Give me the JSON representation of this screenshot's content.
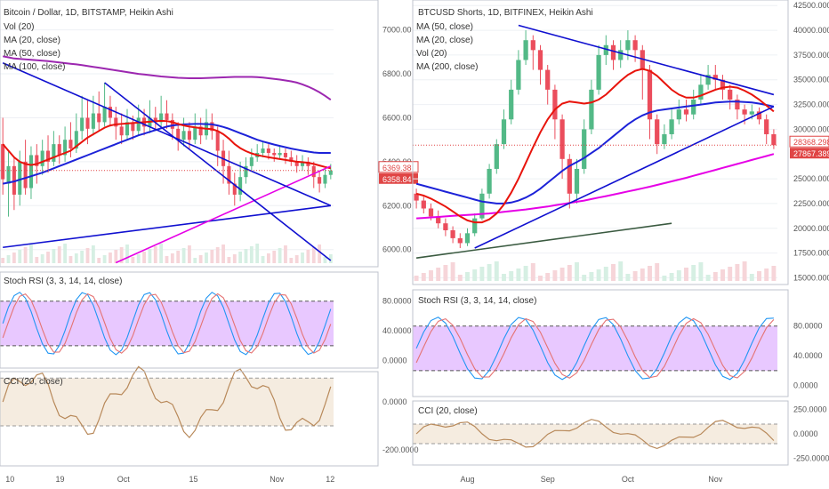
{
  "colors": {
    "up": "#53b987",
    "down": "#eb4d5c",
    "ma_red": "#e8140c",
    "ma_blue": "#1c22d8",
    "ma_purple": "#9c27b0",
    "ma_magenta": "#e600e6",
    "trend_blue": "#1010d0",
    "trend_dark": "#3a5a40",
    "rsi_band": "#e8c8ff",
    "cci_band": "#f5ece0",
    "cci_line": "#b8895a",
    "price_tag": "#e04545"
  },
  "left": {
    "title": "Bitcoin / Dollar, 1D, BITSTAMP, Heikin Ashi",
    "legend": [
      "Vol (20)",
      "MA (20, close)",
      "MA (50, close)",
      "MA (100, close)"
    ],
    "price_ticks": [
      "7000.00",
      "6800.00",
      "6600.00",
      "6400.00",
      "6200.00",
      "6000.00"
    ],
    "price_range": [
      5930,
      7120
    ],
    "price_tag_1": "6369.38",
    "price_tag_2": "6358.84",
    "rsi_title": "Stoch RSI (3, 3, 14, 14, close)",
    "rsi_ticks": [
      "80.0000",
      "40.0000",
      "0.0000"
    ],
    "cci_title": "CCI (20, close)",
    "cci_ticks": [
      "0.0000",
      "-200.0000"
    ],
    "x_ticks": [
      "10",
      "19",
      "Oct",
      "15",
      "Nov",
      "12"
    ]
  },
  "right": {
    "title": "BTCUSD Shorts, 1D, BITFINEX, Heikin Ashi",
    "legend": [
      "MA (50, close)",
      "MA (20, close)",
      "Vol (20)",
      "MA (200, close)"
    ],
    "price_ticks": [
      "42500.0000",
      "40000.0000",
      "37500.0000",
      "35000.0000",
      "32500.0000",
      "30000.0000",
      "25000.0000",
      "22500.0000",
      "20000.0000",
      "17500.0000",
      "15000.0000"
    ],
    "price_range": [
      14500,
      42700
    ],
    "price_tag_1": "28368.2986",
    "price_tag_2": "27867.3898",
    "rsi_title": "Stoch RSI (3, 3, 14, 14, close)",
    "rsi_ticks": [
      "80.0000",
      "40.0000",
      "0.0000"
    ],
    "cci_title": "CCI (20, close)",
    "cci_ticks": [
      "250.0000",
      "0.0000",
      "-250.0000"
    ],
    "x_ticks": [
      "Aug",
      "Sep",
      "Oct",
      "Nov"
    ]
  },
  "chart_data": [
    {
      "type": "candlestick",
      "title": "Bitcoin / Dollar, 1D, BITSTAMP, Heikin Ashi",
      "ylim": [
        5930,
        7120
      ],
      "x_ticks": [
        "10",
        "19",
        "Oct",
        "15",
        "Nov",
        "12"
      ],
      "candles": [
        [
          6480,
          6320,
          6600,
          6250
        ],
        [
          6300,
          6380,
          6450,
          6150
        ],
        [
          6380,
          6250,
          6420,
          6180
        ],
        [
          6250,
          6400,
          6450,
          6200
        ],
        [
          6400,
          6280,
          6500,
          6250
        ],
        [
          6280,
          6430,
          6470,
          6230
        ],
        [
          6430,
          6380,
          6480,
          6300
        ],
        [
          6380,
          6450,
          6500,
          6340
        ],
        [
          6450,
          6400,
          6520,
          6350
        ],
        [
          6400,
          6480,
          6540,
          6380
        ],
        [
          6480,
          6430,
          6520,
          6390
        ],
        [
          6430,
          6500,
          6560,
          6400
        ],
        [
          6500,
          6460,
          6580,
          6420
        ],
        [
          6460,
          6540,
          6620,
          6440
        ],
        [
          6540,
          6600,
          6700,
          6500
        ],
        [
          6600,
          6550,
          6680,
          6480
        ],
        [
          6550,
          6620,
          6700,
          6520
        ],
        [
          6620,
          6580,
          6720,
          6540
        ],
        [
          6580,
          6650,
          6760,
          6560
        ],
        [
          6650,
          6600,
          6700,
          6560
        ],
        [
          6600,
          6560,
          6650,
          6500
        ],
        [
          6560,
          6520,
          6620,
          6480
        ],
        [
          6520,
          6580,
          6640,
          6500
        ],
        [
          6580,
          6540,
          6610,
          6500
        ],
        [
          6540,
          6600,
          6660,
          6520
        ],
        [
          6600,
          6560,
          6640,
          6520
        ],
        [
          6560,
          6600,
          6680,
          6530
        ],
        [
          6600,
          6580,
          6650,
          6540
        ],
        [
          6580,
          6620,
          6700,
          6550
        ],
        [
          6620,
          6590,
          6680,
          6550
        ],
        [
          6590,
          6550,
          6620,
          6500
        ],
        [
          6550,
          6500,
          6580,
          6450
        ],
        [
          6500,
          6540,
          6600,
          6470
        ],
        [
          6540,
          6500,
          6580,
          6460
        ],
        [
          6500,
          6560,
          6620,
          6480
        ],
        [
          6560,
          6520,
          6600,
          6480
        ],
        [
          6520,
          6580,
          6640,
          6500
        ],
        [
          6580,
          6540,
          6620,
          6500
        ],
        [
          6540,
          6450,
          6560,
          6380
        ],
        [
          6450,
          6380,
          6500,
          6300
        ],
        [
          6380,
          6300,
          6450,
          6250
        ],
        [
          6300,
          6250,
          6350,
          6200
        ],
        [
          6250,
          6330,
          6400,
          6220
        ],
        [
          6330,
          6380,
          6420,
          6300
        ],
        [
          6380,
          6420,
          6460,
          6360
        ],
        [
          6420,
          6440,
          6480,
          6400
        ],
        [
          6440,
          6460,
          6490,
          6420
        ],
        [
          6460,
          6440,
          6480,
          6410
        ],
        [
          6440,
          6430,
          6460,
          6400
        ],
        [
          6430,
          6440,
          6470,
          6410
        ],
        [
          6440,
          6420,
          6460,
          6390
        ],
        [
          6420,
          6400,
          6450,
          6380
        ],
        [
          6400,
          6380,
          6430,
          6350
        ],
        [
          6380,
          6400,
          6430,
          6360
        ],
        [
          6400,
          6380,
          6420,
          6340
        ],
        [
          6380,
          6330,
          6400,
          6280
        ],
        [
          6330,
          6300,
          6360,
          6260
        ],
        [
          6300,
          6340,
          6370,
          6280
        ],
        [
          6340,
          6360,
          6390,
          6320
        ]
      ],
      "ma20": [
        6480,
        6450,
        6420,
        6400,
        6390,
        6385,
        6390,
        6400,
        6410,
        6420,
        6430,
        6440,
        6450,
        6470,
        6490,
        6510,
        6525,
        6540,
        6555,
        6565,
        6570,
        6572,
        6574,
        6576,
        6578,
        6580,
        6582,
        6584,
        6586,
        6585,
        6580,
        6572,
        6565,
        6560,
        6556,
        6553,
        6550,
        6548,
        6540,
        6525,
        6505,
        6480,
        6462,
        6448,
        6438,
        6430,
        6425,
        6420,
        6416,
        6412,
        6408,
        6404,
        6400,
        6398,
        6395,
        6390,
        6383,
        6376,
        6370
      ],
      "ma50": [
        6300,
        6305,
        6310,
        6318,
        6326,
        6334,
        6342,
        6350,
        6360,
        6370,
        6380,
        6390,
        6400,
        6410,
        6420,
        6430,
        6440,
        6450,
        6460,
        6470,
        6480,
        6490,
        6500,
        6510,
        6520,
        6528,
        6536,
        6544,
        6552,
        6560,
        6565,
        6568,
        6570,
        6571,
        6572,
        6572,
        6571,
        6570,
        6565,
        6558,
        6550,
        6540,
        6530,
        6520,
        6510,
        6500,
        6492,
        6485,
        6478,
        6472,
        6466,
        6460,
        6455,
        6450,
        6446,
        6442,
        6440,
        6440,
        6440
      ],
      "ma100": [
        6880,
        6875,
        6870,
        6868,
        6866,
        6864,
        6862,
        6860,
        6858,
        6855,
        6852,
        6849,
        6846,
        6843,
        6840,
        6836,
        6832,
        6828,
        6824,
        6820,
        6816,
        6812,
        6808,
        6804,
        6800,
        6797,
        6794,
        6791,
        6788,
        6786,
        6784,
        6782,
        6781,
        6780,
        6780,
        6780,
        6781,
        6782,
        6783,
        6784,
        6785,
        6786,
        6786,
        6786,
        6786,
        6785,
        6783,
        6780,
        6777,
        6774,
        6770,
        6766,
        6760,
        6752,
        6742,
        6730,
        6716,
        6700,
        6682
      ]
    },
    {
      "type": "candlestick",
      "title": "BTCUSD Shorts, 1D, BITFINEX, Heikin Ashi",
      "ylim": [
        14500,
        42700
      ],
      "x_ticks": [
        "Aug",
        "Sep",
        "Oct",
        "Nov"
      ],
      "candles": [
        [
          23500,
          22800,
          24000,
          22000
        ],
        [
          22800,
          22000,
          23200,
          21500
        ],
        [
          22000,
          21200,
          22500,
          20800
        ],
        [
          21200,
          20500,
          21800,
          20000
        ],
        [
          20500,
          19800,
          21000,
          19200
        ],
        [
          19800,
          19000,
          20200,
          18500
        ],
        [
          19000,
          18500,
          19500,
          18000
        ],
        [
          18500,
          19500,
          20000,
          18200
        ],
        [
          19500,
          21000,
          21500,
          19200
        ],
        [
          21000,
          23500,
          24000,
          20800
        ],
        [
          23500,
          26000,
          26500,
          23000
        ],
        [
          26000,
          28500,
          29000,
          25500
        ],
        [
          28500,
          31000,
          32000,
          28000
        ],
        [
          31000,
          34000,
          35000,
          30500
        ],
        [
          34000,
          37000,
          38000,
          33500
        ],
        [
          37000,
          39000,
          40000,
          36500
        ],
        [
          39000,
          38000,
          39500,
          36000
        ],
        [
          38000,
          36000,
          38500,
          34500
        ],
        [
          36000,
          34000,
          36500,
          32500
        ],
        [
          34000,
          31000,
          34500,
          29000
        ],
        [
          31000,
          27000,
          31500,
          25000
        ],
        [
          27000,
          23500,
          27500,
          22000
        ],
        [
          23500,
          26000,
          27000,
          22500
        ],
        [
          26000,
          30000,
          31000,
          25500
        ],
        [
          30000,
          34000,
          35000,
          29500
        ],
        [
          34000,
          37500,
          38500,
          33500
        ],
        [
          37500,
          38500,
          39500,
          36500
        ],
        [
          38500,
          37000,
          39000,
          36000
        ],
        [
          37000,
          38000,
          39000,
          36200
        ],
        [
          38000,
          39000,
          40000,
          37000
        ],
        [
          39000,
          38000,
          39500,
          36800
        ],
        [
          38000,
          36000,
          38500,
          33000
        ],
        [
          36000,
          31000,
          36500,
          29000
        ],
        [
          31000,
          28500,
          31500,
          27500
        ],
        [
          28500,
          29500,
          30500,
          28000
        ],
        [
          29500,
          31000,
          32000,
          29000
        ],
        [
          31000,
          32000,
          33000,
          30500
        ],
        [
          32000,
          31500,
          33000,
          30800
        ],
        [
          31500,
          33000,
          34000,
          31000
        ],
        [
          33000,
          34500,
          35500,
          32500
        ],
        [
          34500,
          35500,
          36500,
          34000
        ],
        [
          35500,
          35000,
          36500,
          34000
        ],
        [
          35000,
          34000,
          35500,
          33000
        ],
        [
          34000,
          33000,
          34500,
          32000
        ],
        [
          33000,
          32000,
          33500,
          31000
        ],
        [
          32000,
          31500,
          32500,
          30500
        ],
        [
          31500,
          31800,
          32500,
          31000
        ],
        [
          31800,
          31000,
          32200,
          30500
        ],
        [
          31000,
          29500,
          31500,
          28500
        ],
        [
          29500,
          28400,
          30000,
          28000
        ]
      ],
      "ma20": [
        23500,
        23300,
        23000,
        22600,
        22200,
        21700,
        21200,
        20800,
        20600,
        20600,
        20900,
        21500,
        22400,
        23600,
        25000,
        26600,
        28200,
        29700,
        31000,
        32000,
        32600,
        32800,
        32700,
        32600,
        32700,
        33000,
        33500,
        34200,
        34900,
        35500,
        35900,
        36100,
        35900,
        35400,
        34700,
        34000,
        33500,
        33200,
        33200,
        33400,
        33700,
        34000,
        34200,
        34300,
        34200,
        33900,
        33500,
        33000,
        32400,
        31800
      ],
      "ma50": [
        24500,
        24300,
        24100,
        23900,
        23700,
        23500,
        23300,
        23100,
        22900,
        22700,
        22600,
        22500,
        22500,
        22600,
        22800,
        23100,
        23500,
        24000,
        24600,
        25200,
        25800,
        26300,
        26700,
        27100,
        27600,
        28100,
        28700,
        29300,
        29900,
        30500,
        31000,
        31400,
        31700,
        31900,
        32000,
        32100,
        32200,
        32300,
        32400,
        32500,
        32600,
        32700,
        32750,
        32800,
        32800,
        32750,
        32700,
        32600,
        32450,
        32300
      ],
      "ma200": [
        21000,
        21050,
        21100,
        21150,
        21200,
        21250,
        21300,
        21350,
        21400,
        21450,
        21500,
        21580,
        21660,
        21740,
        21820,
        21900,
        22000,
        22100,
        22200,
        22320,
        22440,
        22560,
        22680,
        22800,
        22950,
        23100,
        23250,
        23400,
        23560,
        23720,
        23880,
        24040,
        24200,
        24380,
        24560,
        24740,
        24920,
        25100,
        25300,
        25500,
        25700,
        25900,
        26100,
        26300,
        26500,
        26700,
        26900,
        27100,
        27300,
        27500
      ]
    }
  ]
}
